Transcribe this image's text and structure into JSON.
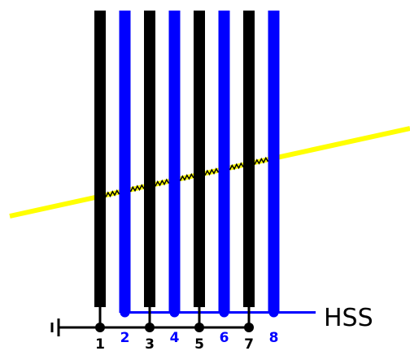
{
  "diagram": {
    "strips": [
      {
        "label": "1",
        "color": "#000000"
      },
      {
        "label": "2",
        "color": "#0000ff"
      },
      {
        "label": "3",
        "color": "#000000"
      },
      {
        "label": "4",
        "color": "#0000ff"
      },
      {
        "label": "5",
        "color": "#000000"
      },
      {
        "label": "6",
        "color": "#0000ff"
      },
      {
        "label": "7",
        "color": "#000000"
      },
      {
        "label": "8",
        "color": "#0000ff"
      }
    ],
    "bus_label": "HSS",
    "colors": {
      "track": "#ffff00",
      "odd_bus": "#000000",
      "even_bus": "#0000ff",
      "hit_zigzag": "#000000"
    },
    "icons": [
      "ground-icon"
    ]
  }
}
